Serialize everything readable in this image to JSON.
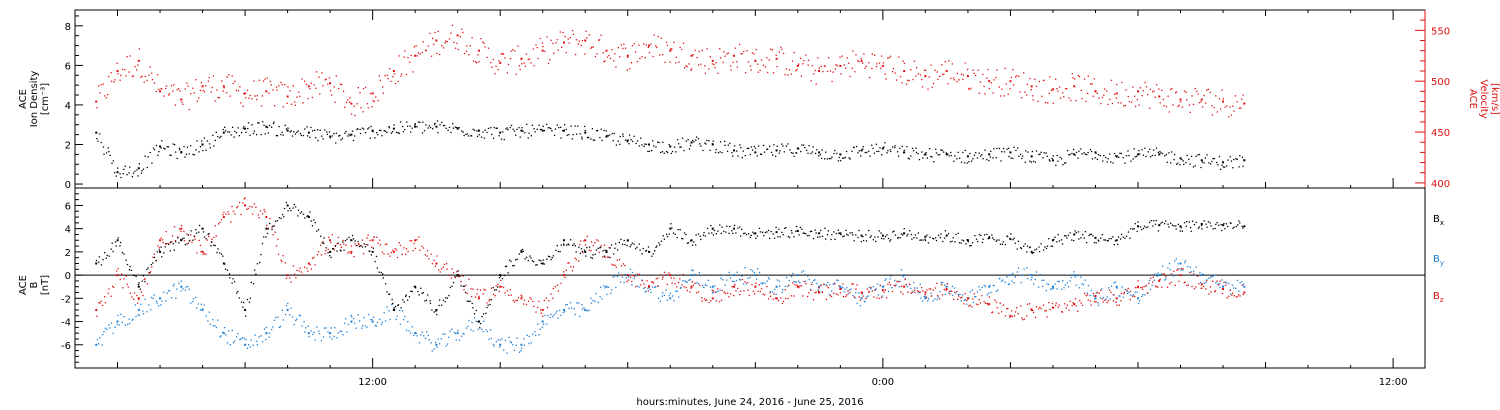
{
  "xaxis": {
    "label": "hours:minutes, June 24, 2016 - June 25, 2016",
    "range_hours": [
      5.0,
      36.75
    ],
    "ticks": [
      {
        "hour": 12,
        "label": "12:00"
      },
      {
        "hour": 24,
        "label": "0:00"
      },
      {
        "hour": 36,
        "label": "12:00"
      }
    ]
  },
  "top_panel": {
    "left_ylabel": [
      "ACE",
      "Ion Density",
      "[cm⁻³]"
    ],
    "right_ylabel": [
      "ACE",
      "Velocity",
      "[km/s]"
    ],
    "density_ticks": [
      "0",
      "2",
      "4",
      "6",
      "8"
    ],
    "velocity_ticks": [
      "400",
      "450",
      "500",
      "550"
    ]
  },
  "bottom_panel": {
    "ylabel": [
      "ACE",
      "B",
      "[nT]"
    ],
    "ticks": [
      "-6",
      "-4",
      "-2",
      "0",
      "2",
      "4",
      "6"
    ],
    "legend": [
      {
        "label": "B",
        "sub": "x",
        "color": "#000000"
      },
      {
        "label": "B",
        "sub": "y",
        "color": "#1e7fd6"
      },
      {
        "label": "B",
        "sub": "z",
        "color": "#e01010"
      }
    ]
  },
  "colors": {
    "density": "#000000",
    "velocity": "#e01010",
    "bx": "#000000",
    "by": "#1e7fd6",
    "bz": "#e01010"
  },
  "chart_data": [
    {
      "type": "scatter",
      "panel": "top",
      "x_unit": "hours since 2016-06-24 00:00",
      "ylim_left": [
        -0.2,
        8.8
      ],
      "ylim_right": [
        395,
        570
      ],
      "series": [
        {
          "axis": "left",
          "x": [
            5.5,
            6,
            6.5,
            7,
            7.5,
            8,
            8.5,
            9,
            9.5,
            10,
            10.5,
            11,
            11.5,
            12,
            12.5,
            13,
            13.5,
            14,
            14.5,
            15,
            15.5,
            16,
            16.5,
            17,
            17.5,
            18,
            18.5,
            19,
            19.5,
            20,
            20.5,
            21,
            21.5,
            22,
            22.5,
            23,
            23.5,
            24,
            24.5,
            25,
            25.5,
            26,
            26.5,
            27,
            27.5,
            28,
            28.5,
            29,
            29.5,
            30,
            30.5,
            31,
            31.5,
            32,
            32.5
          ],
          "y": [
            2.6,
            0.6,
            0.8,
            1.9,
            1.6,
            2.0,
            2.6,
            2.8,
            2.9,
            2.7,
            2.6,
            2.4,
            2.5,
            2.7,
            2.8,
            2.9,
            2.9,
            2.8,
            2.7,
            2.6,
            2.7,
            2.7,
            2.7,
            2.6,
            2.4,
            2.2,
            2.0,
            1.9,
            2.1,
            2.0,
            1.7,
            1.6,
            1.7,
            1.8,
            1.6,
            1.5,
            1.7,
            1.8,
            1.6,
            1.5,
            1.5,
            1.4,
            1.5,
            1.6,
            1.4,
            1.2,
            1.5,
            1.6,
            1.4,
            1.5,
            1.5,
            1.3,
            1.2,
            1.1,
            1.2
          ]
        },
        {
          "axis": "right",
          "x": [
            5.5,
            6,
            6.5,
            7,
            7.5,
            8,
            8.5,
            9,
            9.5,
            10,
            10.5,
            11,
            11.5,
            12,
            12.5,
            13,
            13.5,
            14,
            14.5,
            15,
            15.5,
            16,
            16.5,
            17,
            17.5,
            18,
            18.5,
            19,
            19.5,
            20,
            20.5,
            21,
            21.5,
            22,
            22.5,
            23,
            23.5,
            24,
            24.5,
            25,
            25.5,
            26,
            26.5,
            27,
            27.5,
            28,
            28.5,
            29,
            29.5,
            30,
            30.5,
            31,
            31.5,
            32,
            32.5
          ],
          "y": [
            480,
            510,
            520,
            490,
            482,
            495,
            495,
            488,
            490,
            485,
            495,
            498,
            478,
            488,
            510,
            525,
            540,
            545,
            530,
            518,
            522,
            530,
            538,
            540,
            530,
            525,
            535,
            530,
            525,
            520,
            525,
            520,
            522,
            515,
            510,
            515,
            520,
            515,
            510,
            505,
            510,
            505,
            500,
            500,
            495,
            492,
            495,
            490,
            488,
            490,
            485,
            482,
            482,
            480,
            478
          ]
        }
      ]
    },
    {
      "type": "scatter",
      "panel": "bottom",
      "x_unit": "hours since 2016-06-24 00:00",
      "ylim": [
        -8,
        7.5
      ],
      "series": [
        {
          "name": "Bx",
          "x": [
            5.5,
            6,
            6.5,
            7,
            7.5,
            8,
            8.5,
            9,
            9.5,
            10,
            10.5,
            11,
            11.5,
            12,
            12.5,
            13,
            13.5,
            14,
            14.5,
            15,
            15.5,
            16,
            16.5,
            17,
            17.5,
            18,
            18.5,
            19,
            19.5,
            20,
            20.5,
            21,
            21.5,
            22,
            22.5,
            23,
            23.5,
            24,
            24.5,
            25,
            25.5,
            26,
            26.5,
            27,
            27.5,
            28,
            28.5,
            29,
            29.5,
            30,
            30.5,
            31,
            31.5,
            32,
            32.5
          ],
          "y": [
            1,
            3,
            -1,
            2,
            3,
            4,
            1,
            -3,
            4,
            6,
            5,
            2,
            3,
            2,
            -3,
            -1,
            -3,
            0,
            -4,
            0,
            2,
            1,
            3,
            2,
            2,
            3,
            2,
            4,
            3,
            4,
            4,
            3.6,
            3.7,
            3.8,
            3.6,
            3.6,
            3.4,
            3.4,
            3.6,
            3.3,
            3.4,
            3.0,
            3.2,
            3.1,
            2.0,
            3.0,
            3.5,
            3.2,
            3.0,
            4.2,
            4.3,
            4.2,
            4.4,
            4.3,
            4.2
          ]
        },
        {
          "name": "By",
          "x": [
            5.5,
            6,
            6.5,
            7,
            7.5,
            8,
            8.5,
            9,
            9.5,
            10,
            10.5,
            11,
            11.5,
            12,
            12.5,
            13,
            13.5,
            14,
            14.5,
            15,
            15.5,
            16,
            16.5,
            17,
            17.5,
            18,
            18.5,
            19,
            19.5,
            20,
            20.5,
            21,
            21.5,
            22,
            22.5,
            23,
            23.5,
            24,
            24.5,
            25,
            25.5,
            26,
            26.5,
            27,
            27.5,
            28,
            28.5,
            29,
            29.5,
            30,
            30.5,
            31,
            31.5,
            32,
            32.5
          ],
          "y": [
            -6,
            -4,
            -3,
            -2,
            -1,
            -3,
            -5,
            -6,
            -5,
            -3,
            -5,
            -5,
            -4,
            -4,
            -3,
            -5,
            -6,
            -5,
            -4,
            -6,
            -6,
            -4,
            -3,
            -3,
            -1,
            0,
            -1,
            -2,
            0,
            -1,
            0,
            0,
            -1,
            0,
            -1,
            -1,
            -2,
            -1,
            0,
            -2,
            -1,
            -2,
            -1,
            0,
            0,
            -1,
            0,
            -2,
            -1,
            -2,
            0,
            1,
            0,
            -1,
            -1
          ]
        },
        {
          "name": "Bz",
          "x": [
            5.5,
            6,
            6.5,
            7,
            7.5,
            8,
            8.5,
            9,
            9.5,
            10,
            10.5,
            11,
            11.5,
            12,
            12.5,
            13,
            13.5,
            14,
            14.5,
            15,
            15.5,
            16,
            16.5,
            17,
            17.5,
            18,
            18.5,
            19,
            19.5,
            20,
            20.5,
            21,
            21.5,
            22,
            22.5,
            23,
            23.5,
            24,
            24.5,
            25,
            25.5,
            26,
            26.5,
            27,
            27.5,
            28,
            28.5,
            29,
            29.5,
            30,
            30.5,
            31,
            31.5,
            32,
            32.5
          ],
          "y": [
            -3,
            0,
            -2,
            3,
            4,
            2,
            5,
            6,
            5,
            0,
            1,
            3,
            2,
            3,
            2,
            3,
            1,
            0,
            -2,
            -1,
            -2,
            -3,
            0,
            3,
            2,
            0,
            -1,
            0,
            -1,
            -2,
            -1,
            -1,
            -2,
            -1,
            -1.5,
            -1.2,
            -1.5,
            -1.3,
            -1.0,
            -1.5,
            -1.2,
            -2.0,
            -2.5,
            -3.5,
            -3.0,
            -2.8,
            -2.5,
            -1.8,
            -2.0,
            -1.0,
            -0.5,
            0,
            -0.8,
            -1.2,
            -1.5
          ]
        }
      ]
    }
  ]
}
